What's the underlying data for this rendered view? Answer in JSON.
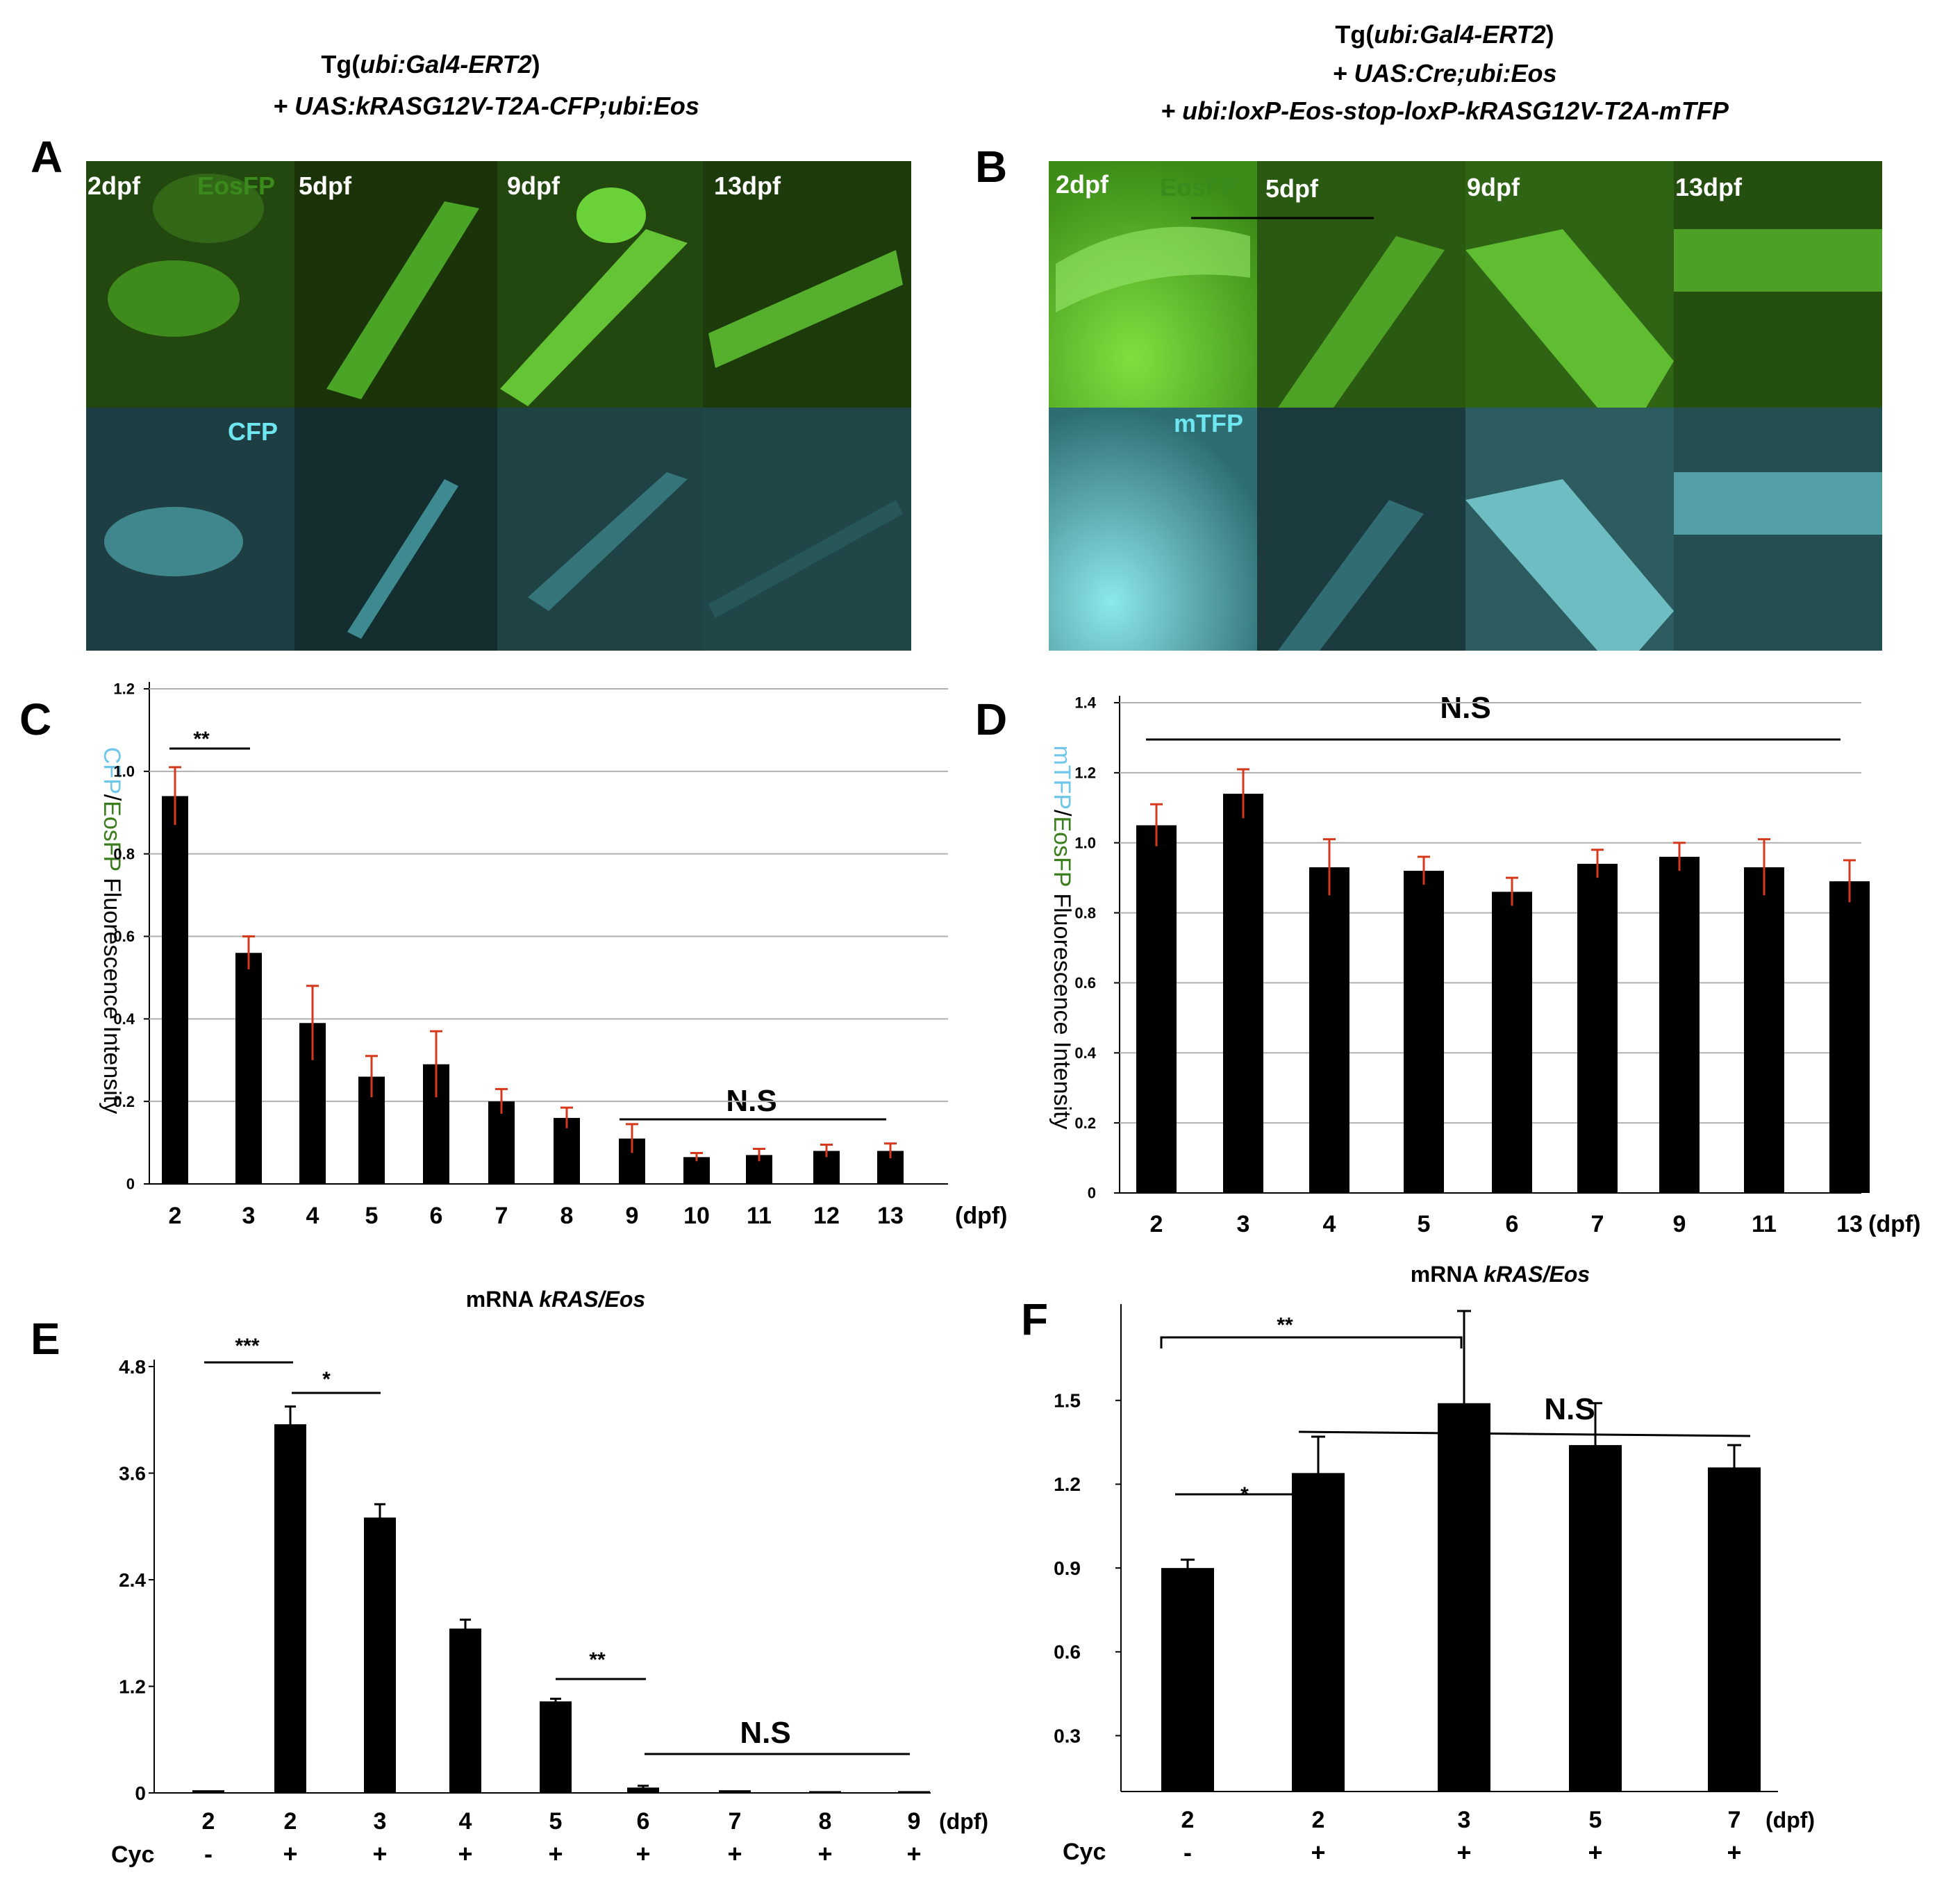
{
  "panels": {
    "A": {
      "letter": "A",
      "header_prefix": "Tg(",
      "header_italic": "ubi:Gal4-ERT2",
      "header_suffix": ")",
      "header_line2": "+ UAS:kRASG12V-T2A-CFP;ubi:Eos",
      "top_channel": "EosFP",
      "bottom_channel": "CFP",
      "timepoints": [
        "2dpf",
        "5dpf",
        "9dpf",
        "13dpf"
      ]
    },
    "B": {
      "letter": "B",
      "header_prefix": "Tg(",
      "header_italic": "ubi:Gal4-ERT2",
      "header_suffix": ")",
      "header_line2": "+  UAS:Cre;ubi:Eos",
      "header_line3": "+ ubi:loxP-Eos-stop-loxP-kRASG12V-T2A-mTFP",
      "top_channel": "EosFP",
      "bottom_channel": "mTFP",
      "timepoints": [
        "2dpf",
        "5dpf",
        "9dpf",
        "13dpf"
      ]
    },
    "C": {
      "letter": "C"
    },
    "D": {
      "letter": "D"
    },
    "E": {
      "letter": "E"
    },
    "F": {
      "letter": "F"
    }
  },
  "colors": {
    "eos_label": "#3a7d1c",
    "cfp_label": "#6ec6ea",
    "bar": "#000000",
    "error_bar_red": "#d6381c",
    "grid": "#b0b0b0"
  },
  "chart_data": [
    {
      "id": "C",
      "type": "bar",
      "categories": [
        "2",
        "3",
        "4",
        "5",
        "6",
        "7",
        "8",
        "9",
        "10",
        "11",
        "12",
        "13"
      ],
      "values": [
        0.94,
        0.56,
        0.39,
        0.26,
        0.29,
        0.2,
        0.16,
        0.11,
        0.065,
        0.07,
        0.08,
        0.08
      ],
      "errors": [
        0.07,
        0.04,
        0.09,
        0.05,
        0.08,
        0.03,
        0.025,
        0.035,
        0.01,
        0.015,
        0.015,
        0.018
      ],
      "ylabel_part1": "CFP",
      "ylabel_part2": "/",
      "ylabel_part3": "EosFP",
      "ylabel_part4": " Fluorescence Intensity",
      "x_unit": "(dpf)",
      "ylim": [
        0,
        1.2
      ],
      "yticks": [
        "0",
        "0.2",
        "0.4",
        "0.6",
        "0.8",
        "1.0",
        "1.2"
      ],
      "grid": true,
      "annotations": {
        "sig1": "**",
        "ns": "N.S"
      }
    },
    {
      "id": "D",
      "type": "bar",
      "categories": [
        "2",
        "3",
        "4",
        "5",
        "6",
        "7",
        "9",
        "11",
        "13"
      ],
      "values": [
        1.05,
        1.14,
        0.93,
        0.92,
        0.86,
        0.94,
        0.96,
        0.93,
        0.89
      ],
      "errors": [
        0.06,
        0.07,
        0.08,
        0.04,
        0.04,
        0.04,
        0.04,
        0.08,
        0.06
      ],
      "ylabel_part1": "mTFP",
      "ylabel_part2": "/",
      "ylabel_part3": "EosFP",
      "ylabel_part4": " Fluorescence Intensity",
      "x_unit": "(dpf)",
      "ylim": [
        0,
        1.4
      ],
      "yticks": [
        "0",
        "0.2",
        "0.4",
        "0.6",
        "0.8",
        "1.0",
        "1.2",
        "1.4"
      ],
      "grid": true,
      "annotations": {
        "ns": "N.S"
      }
    },
    {
      "id": "E",
      "type": "bar",
      "title_prefix": "mRNA ",
      "title_italic": "kRAS/Eos",
      "categories": [
        "2",
        "2",
        "3",
        "4",
        "5",
        "6",
        "7",
        "8",
        "9"
      ],
      "cyc": [
        "-",
        "+",
        "+",
        "+",
        "+",
        "+",
        "+",
        "+",
        "+"
      ],
      "cyc_label": "Cyc",
      "values": [
        0.03,
        4.15,
        3.1,
        1.85,
        1.03,
        0.06,
        0.03,
        0.02,
        0.02
      ],
      "errors": [
        0.0,
        0.2,
        0.15,
        0.1,
        0.03,
        0.02,
        0.0,
        0.0,
        0.0
      ],
      "x_unit": "(dpf)",
      "ylim": [
        0,
        4.8
      ],
      "yticks": [
        "0",
        "1.2",
        "2.4",
        "3.6",
        "4.8"
      ],
      "grid": false,
      "annotations": {
        "sig1": "***",
        "sig2": "*",
        "sig3": "**",
        "ns": "N.S"
      }
    },
    {
      "id": "F",
      "type": "bar",
      "title_prefix": "mRNA ",
      "title_italic": "kRAS/Eos",
      "categories": [
        "2",
        "2",
        "3",
        "5",
        "7"
      ],
      "cyc": [
        "-",
        "+",
        "+",
        "+",
        "+"
      ],
      "cyc_label": "Cyc",
      "values": [
        0.9,
        1.24,
        1.49,
        1.34,
        1.26
      ],
      "errors": [
        0.03,
        0.13,
        0.33,
        0.15,
        0.08
      ],
      "x_unit": "(dpf)",
      "yticks": [
        "0.3",
        "0.6",
        "0.9",
        "1.2",
        "1.5"
      ],
      "grid": false,
      "annotations": {
        "sig1": "**",
        "sig2": "*",
        "ns": "N.S"
      }
    }
  ]
}
